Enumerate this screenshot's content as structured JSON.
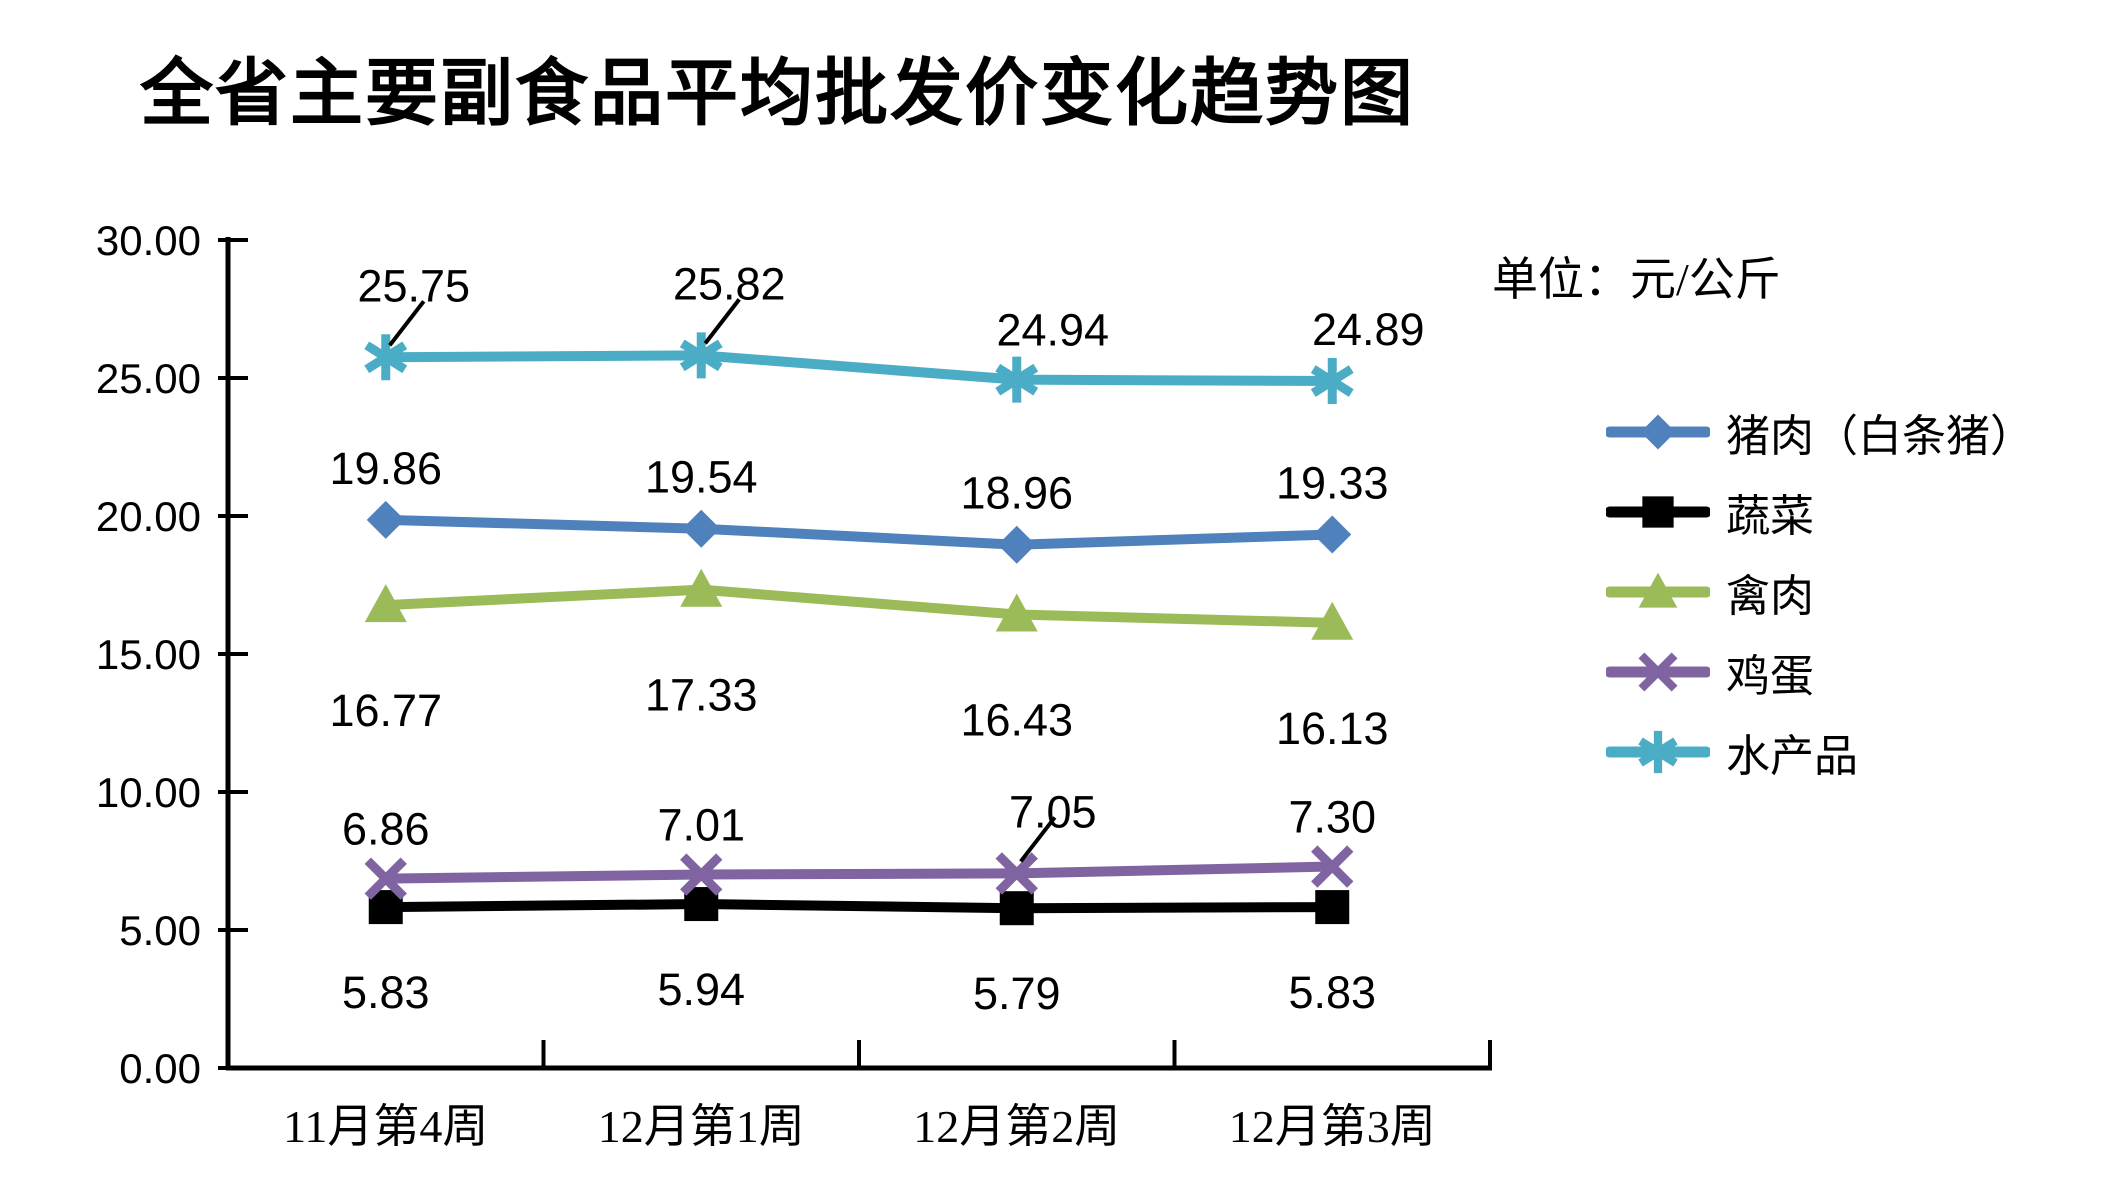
{
  "title": "全省主要副食品平均批发价变化趋势图",
  "unit_label": "单位：元/公斤",
  "chart_data": {
    "type": "line",
    "title": "全省主要副食品平均批发价变化趋势图",
    "unit": "单位：元/公斤",
    "categories": [
      "11月第4周",
      "12月第1周",
      "12月第2周",
      "12月第3周"
    ],
    "y_axis": {
      "min": 0,
      "max": 30,
      "step": 5,
      "tick_labels": [
        "0.00",
        "5.00",
        "10.00",
        "15.00",
        "20.00",
        "25.00",
        "30.00"
      ]
    },
    "grid": false,
    "legend_position": "right",
    "axis_color": "#000000",
    "series": [
      {
        "id": "pork",
        "name": "猪肉（白条猪）",
        "color": "#4F81BD",
        "marker": "diamond",
        "values": [
          19.86,
          19.54,
          18.96,
          19.33
        ],
        "label_side": "above"
      },
      {
        "id": "vegetables",
        "name": "蔬菜",
        "color": "#000000",
        "marker": "square",
        "values": [
          5.83,
          5.94,
          5.79,
          5.83
        ],
        "label_side": "below"
      },
      {
        "id": "poultry",
        "name": "禽肉",
        "color": "#9BBB59",
        "marker": "triangle",
        "values": [
          16.77,
          17.33,
          16.43,
          16.13
        ],
        "label_side": "below"
      },
      {
        "id": "eggs",
        "name": "鸡蛋",
        "color": "#8064A2",
        "marker": "x",
        "values": [
          6.86,
          7.01,
          7.05,
          7.3
        ],
        "label_side": "above",
        "leader_points": [
          2
        ]
      },
      {
        "id": "aquatic",
        "name": "水产品",
        "color": "#4BACC6",
        "marker": "asterisk",
        "values": [
          25.75,
          25.82,
          24.94,
          24.89
        ],
        "label_side": "above",
        "leader_points": [
          0,
          1
        ]
      }
    ]
  }
}
